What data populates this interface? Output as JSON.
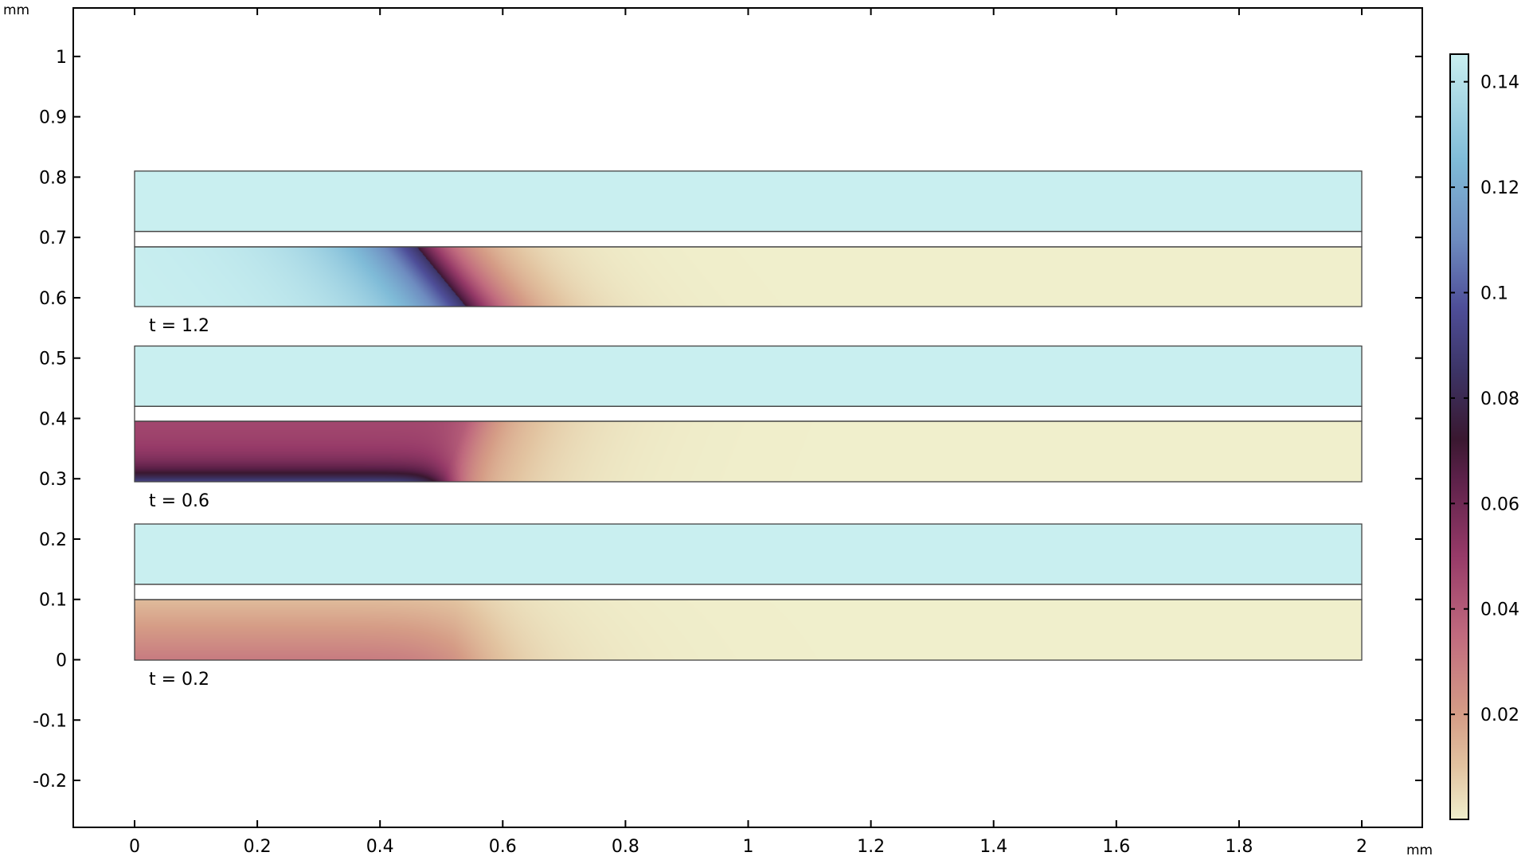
{
  "chart_data": {
    "type": "heatmap",
    "x_unit": "mm",
    "y_unit": "mm",
    "xlim": [
      -0.1,
      2.1
    ],
    "ylim": [
      -0.28,
      1.08
    ],
    "x_ticks": [
      "0",
      "0.2",
      "0.4",
      "0.6",
      "0.8",
      "1",
      "1.2",
      "1.4",
      "1.6",
      "1.8",
      "2"
    ],
    "x_tick_values": [
      0,
      0.2,
      0.4,
      0.6,
      0.8,
      1,
      1.2,
      1.4,
      1.6,
      1.8,
      2
    ],
    "y_ticks": [
      "1",
      "0.9",
      "0.8",
      "0.7",
      "0.6",
      "0.5",
      "0.4",
      "0.3",
      "0.2",
      "0.1",
      "0",
      "-0.1",
      "-0.2"
    ],
    "y_tick_values": [
      1,
      0.9,
      0.8,
      0.7,
      0.6,
      0.5,
      0.4,
      0.3,
      0.2,
      0.1,
      0,
      -0.1,
      -0.2
    ],
    "grid": false,
    "snapshots": [
      {
        "label": "t = 1.2",
        "upper_domain_y": [
          0.71,
          0.81
        ],
        "lower_domain_y": [
          0.585,
          0.685
        ],
        "x_range": [
          0,
          2
        ]
      },
      {
        "label": "t = 0.6",
        "upper_domain_y": [
          0.42,
          0.52
        ],
        "lower_domain_y": [
          0.295,
          0.395
        ],
        "x_range": [
          0,
          2
        ]
      },
      {
        "label": "t = 0.2",
        "upper_domain_y": [
          0.125,
          0.225
        ],
        "lower_domain_y": [
          0,
          0.1
        ],
        "x_range": [
          0,
          2
        ]
      }
    ],
    "colorbar": {
      "range": [
        0,
        0.145
      ],
      "ticks": [
        "0.14",
        "0.12",
        "0.1",
        "0.08",
        "0.06",
        "0.04",
        "0.02"
      ],
      "tick_values": [
        0.14,
        0.12,
        0.1,
        0.08,
        0.06,
        0.04,
        0.02
      ],
      "colormap": [
        {
          "v": 0,
          "c": "#f0efcc"
        },
        {
          "v": 0.01,
          "c": "#e2c3a0"
        },
        {
          "v": 0.02,
          "c": "#d59c86"
        },
        {
          "v": 0.035,
          "c": "#c06a7e"
        },
        {
          "v": 0.05,
          "c": "#963a68"
        },
        {
          "v": 0.065,
          "c": "#5a2048"
        },
        {
          "v": 0.072,
          "c": "#3a1830"
        },
        {
          "v": 0.085,
          "c": "#3c3466"
        },
        {
          "v": 0.097,
          "c": "#4e4e98"
        },
        {
          "v": 0.11,
          "c": "#6e8cc0"
        },
        {
          "v": 0.125,
          "c": "#80bcd8"
        },
        {
          "v": 0.145,
          "c": "#c9eff0"
        }
      ]
    }
  }
}
